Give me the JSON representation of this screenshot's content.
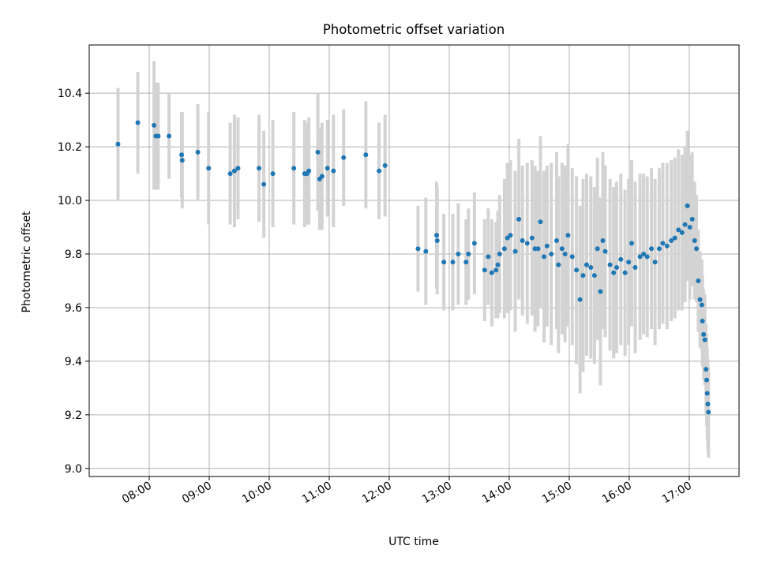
{
  "chart_data": {
    "type": "scatter",
    "title": "Photometric offset variation",
    "xlabel": "UTC time",
    "ylabel": "Photometric offset",
    "x_unit": "hours UTC",
    "xlim": [
      7.0,
      17.83
    ],
    "ylim": [
      8.97,
      10.58
    ],
    "x_ticks": [
      8,
      9,
      10,
      11,
      12,
      13,
      14,
      15,
      16,
      17
    ],
    "x_tick_labels": [
      "08:00",
      "09:00",
      "10:00",
      "11:00",
      "12:00",
      "13:00",
      "14:00",
      "15:00",
      "16:00",
      "17:00"
    ],
    "y_ticks": [
      9.0,
      9.2,
      9.4,
      9.6,
      9.8,
      10.0,
      10.2,
      10.4
    ],
    "y_tick_labels": [
      "9.0",
      "9.2",
      "9.4",
      "9.6",
      "9.8",
      "10.0",
      "10.2",
      "10.4"
    ],
    "grid": true,
    "legend": "none",
    "colors": {
      "points": "#1f77b4",
      "errorbars": "#d3d3d3",
      "grid": "#b0b0b0"
    },
    "series": [
      {
        "points": [
          [
            7.48,
            10.21,
            0.21
          ],
          [
            7.81,
            10.29,
            0.19
          ],
          [
            8.08,
            10.28,
            0.24
          ],
          [
            8.11,
            10.24,
            0.2
          ],
          [
            8.15,
            10.24,
            0.2
          ],
          [
            8.33,
            10.24,
            0.16
          ],
          [
            8.54,
            10.17,
            0.16
          ],
          [
            8.55,
            10.15,
            0.18
          ],
          [
            8.81,
            10.18,
            0.18
          ],
          [
            8.99,
            10.12,
            0.21
          ],
          [
            9.35,
            10.1,
            0.19
          ],
          [
            9.42,
            10.11,
            0.21
          ],
          [
            9.48,
            10.12,
            0.19
          ],
          [
            9.83,
            10.12,
            0.2
          ],
          [
            9.91,
            10.06,
            0.2
          ],
          [
            10.06,
            10.1,
            0.2
          ],
          [
            10.41,
            10.12,
            0.21
          ],
          [
            10.59,
            10.1,
            0.2
          ],
          [
            10.63,
            10.1,
            0.19
          ],
          [
            10.66,
            10.11,
            0.2
          ],
          [
            10.81,
            10.18,
            0.22
          ],
          [
            10.84,
            10.08,
            0.19
          ],
          [
            10.88,
            10.09,
            0.2
          ],
          [
            10.97,
            10.12,
            0.18
          ],
          [
            11.07,
            10.11,
            0.21
          ],
          [
            11.24,
            10.16,
            0.18
          ],
          [
            11.61,
            10.17,
            0.2
          ],
          [
            11.83,
            10.11,
            0.18
          ],
          [
            11.93,
            10.13,
            0.19
          ],
          [
            12.48,
            9.82,
            0.16
          ],
          [
            12.61,
            9.81,
            0.2
          ],
          [
            12.79,
            9.87,
            0.2
          ],
          [
            12.8,
            9.85,
            0.2
          ],
          [
            12.91,
            9.77,
            0.18
          ],
          [
            13.06,
            9.77,
            0.18
          ],
          [
            13.15,
            9.8,
            0.19
          ],
          [
            13.28,
            9.77,
            0.16
          ],
          [
            13.32,
            9.8,
            0.17
          ],
          [
            13.42,
            9.84,
            0.19
          ],
          [
            13.59,
            9.74,
            0.19
          ],
          [
            13.65,
            9.79,
            0.18
          ],
          [
            13.71,
            9.73,
            0.2
          ],
          [
            13.78,
            9.74,
            0.18
          ],
          [
            13.81,
            9.76,
            0.2
          ],
          [
            13.84,
            9.8,
            0.22
          ],
          [
            13.92,
            9.82,
            0.26
          ],
          [
            13.97,
            9.86,
            0.28
          ],
          [
            14.02,
            9.87,
            0.28
          ],
          [
            14.1,
            9.81,
            0.3
          ],
          [
            14.16,
            9.93,
            0.3
          ],
          [
            14.22,
            9.85,
            0.28
          ],
          [
            14.3,
            9.84,
            0.3
          ],
          [
            14.38,
            9.86,
            0.29
          ],
          [
            14.43,
            9.82,
            0.31
          ],
          [
            14.48,
            9.82,
            0.29
          ],
          [
            14.52,
            9.92,
            0.32
          ],
          [
            14.58,
            9.79,
            0.32
          ],
          [
            14.63,
            9.83,
            0.3
          ],
          [
            14.7,
            9.8,
            0.34
          ],
          [
            14.79,
            9.85,
            0.33
          ],
          [
            14.82,
            9.76,
            0.33
          ],
          [
            14.88,
            9.82,
            0.32
          ],
          [
            14.93,
            9.8,
            0.33
          ],
          [
            14.98,
            9.87,
            0.34
          ],
          [
            15.05,
            9.79,
            0.33
          ],
          [
            15.12,
            9.74,
            0.35
          ],
          [
            15.18,
            9.63,
            0.35
          ],
          [
            15.23,
            9.72,
            0.36
          ],
          [
            15.29,
            9.76,
            0.34
          ],
          [
            15.36,
            9.75,
            0.34
          ],
          [
            15.42,
            9.72,
            0.33
          ],
          [
            15.47,
            9.82,
            0.34
          ],
          [
            15.52,
            9.66,
            0.35
          ],
          [
            15.56,
            9.85,
            0.33
          ],
          [
            15.6,
            9.81,
            0.32
          ],
          [
            15.68,
            9.76,
            0.32
          ],
          [
            15.74,
            9.73,
            0.32
          ],
          [
            15.79,
            9.75,
            0.32
          ],
          [
            15.86,
            9.78,
            0.32
          ],
          [
            15.93,
            9.73,
            0.31
          ],
          [
            15.99,
            9.77,
            0.31
          ],
          [
            16.04,
            9.84,
            0.31
          ],
          [
            16.1,
            9.75,
            0.32
          ],
          [
            16.18,
            9.79,
            0.31
          ],
          [
            16.24,
            9.8,
            0.3
          ],
          [
            16.3,
            9.79,
            0.3
          ],
          [
            16.37,
            9.82,
            0.3
          ],
          [
            16.43,
            9.77,
            0.31
          ],
          [
            16.5,
            9.82,
            0.3
          ],
          [
            16.56,
            9.84,
            0.3
          ],
          [
            16.63,
            9.83,
            0.31
          ],
          [
            16.7,
            9.85,
            0.3
          ],
          [
            16.76,
            9.86,
            0.3
          ],
          [
            16.82,
            9.89,
            0.3
          ],
          [
            16.88,
            9.88,
            0.29
          ],
          [
            16.93,
            9.91,
            0.29
          ],
          [
            16.97,
            9.98,
            0.28
          ],
          [
            17.01,
            9.9,
            0.27
          ],
          [
            17.05,
            9.93,
            0.25
          ],
          [
            17.09,
            9.85,
            0.22
          ],
          [
            17.12,
            9.82,
            0.2
          ],
          [
            17.15,
            9.7,
            0.19
          ],
          [
            17.18,
            9.63,
            0.18
          ],
          [
            17.21,
            9.61,
            0.17
          ],
          [
            17.22,
            9.55,
            0.17
          ],
          [
            17.24,
            9.5,
            0.17
          ],
          [
            17.26,
            9.48,
            0.17
          ],
          [
            17.28,
            9.37,
            0.17
          ],
          [
            17.29,
            9.33,
            0.17
          ],
          [
            17.3,
            9.28,
            0.17
          ],
          [
            17.31,
            9.24,
            0.17
          ],
          [
            17.32,
            9.21,
            0.17
          ]
        ]
      }
    ]
  }
}
